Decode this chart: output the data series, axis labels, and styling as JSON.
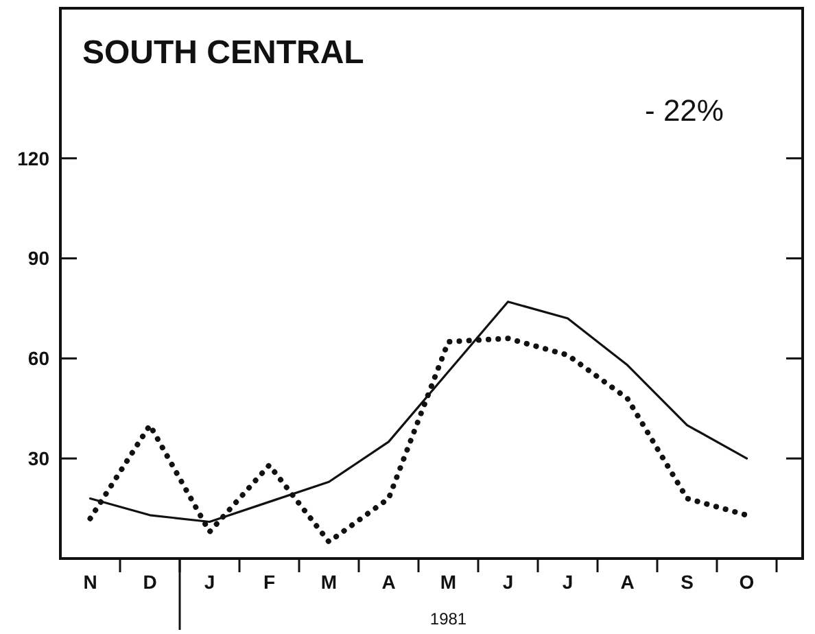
{
  "chart_data": {
    "type": "line",
    "title": "SOUTH CENTRAL",
    "categories": [
      "N",
      "D",
      "J",
      "F",
      "M",
      "A",
      "M",
      "J",
      "J",
      "A",
      "S",
      "O"
    ],
    "series": [
      {
        "color": "#111111",
        "line_style": "solid",
        "values": [
          18,
          13,
          11,
          17,
          23,
          35,
          56,
          77,
          72,
          58,
          40,
          30
        ]
      },
      {
        "color": "#111111",
        "line_style": "dotted",
        "values": [
          12,
          40,
          8,
          28,
          5,
          18,
          65,
          66,
          61,
          48,
          18,
          13
        ]
      }
    ],
    "ylim": [
      0,
      165
    ],
    "yticks": [
      30,
      60,
      90,
      120
    ],
    "annotations": [
      "- 22%",
      "1981"
    ]
  }
}
